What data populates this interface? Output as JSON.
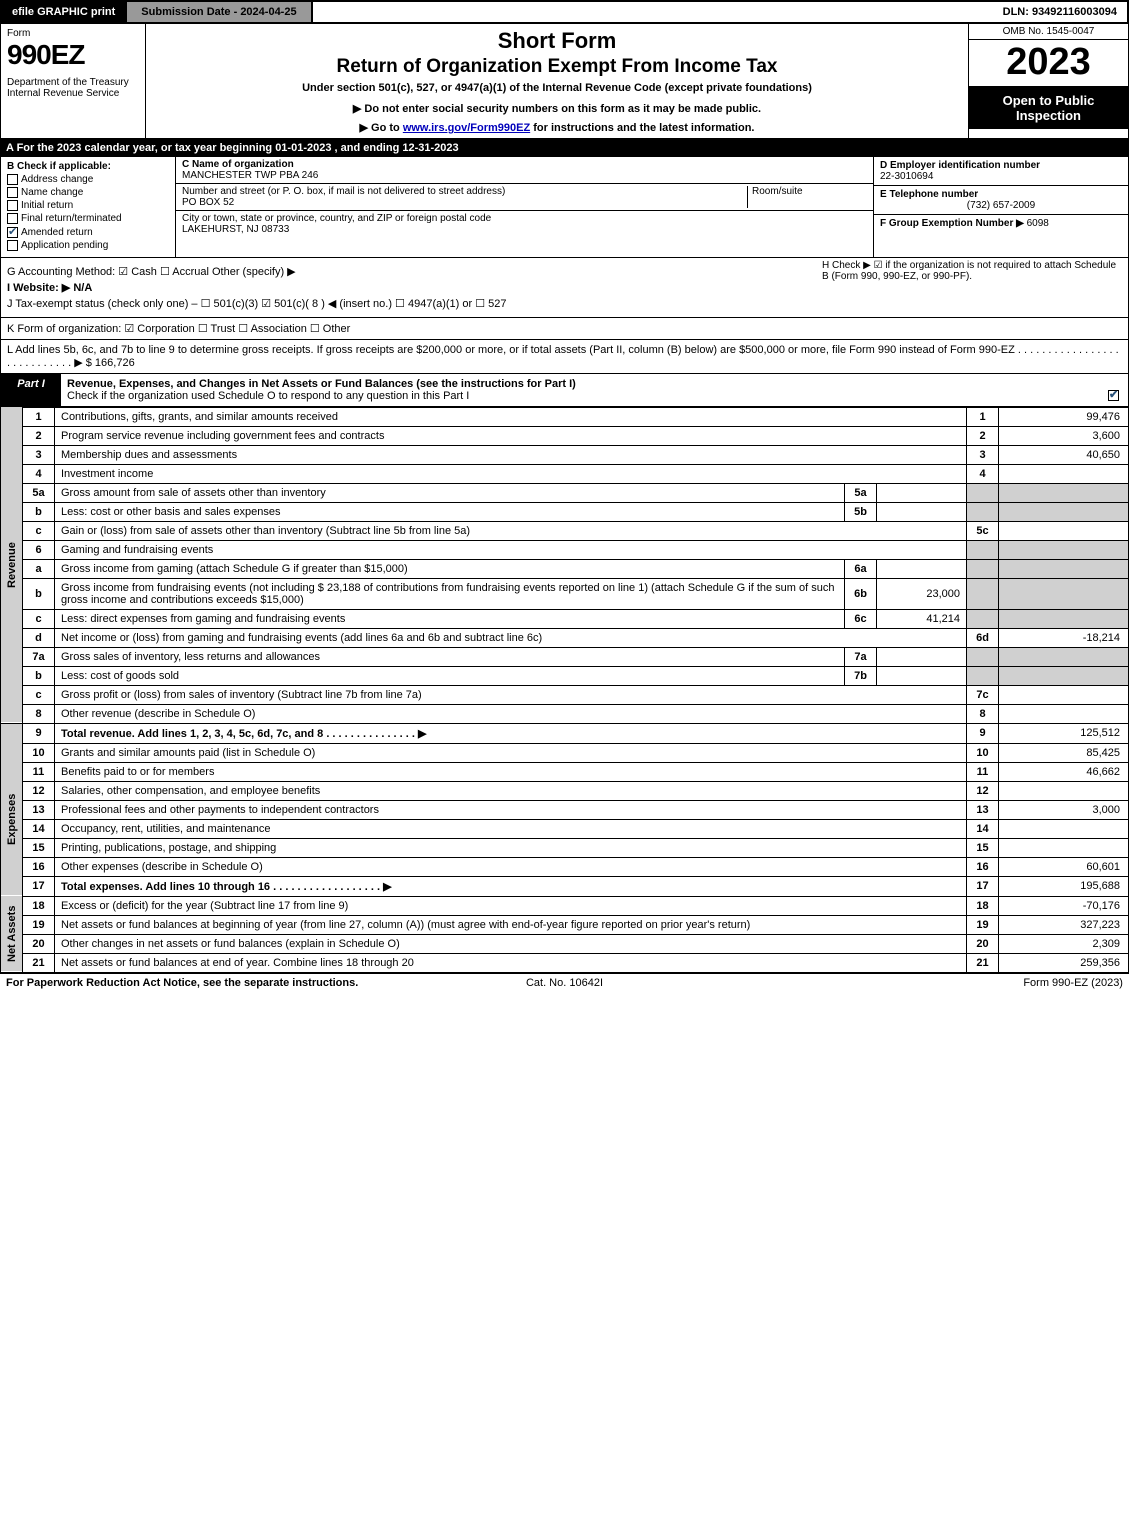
{
  "topbar": {
    "efile": "efile GRAPHIC print",
    "subdate_label": "Submission Date - 2024-04-25",
    "dln": "DLN: 93492116003094"
  },
  "header": {
    "form": "Form",
    "num": "990EZ",
    "dept": "Department of the Treasury\nInternal Revenue Service",
    "t1": "Short Form",
    "t2": "Return of Organization Exempt From Income Tax",
    "t3": "Under section 501(c), 527, or 4947(a)(1) of the Internal Revenue Code (except private foundations)",
    "t4": "▶ Do not enter social security numbers on this form as it may be made public.",
    "t5_pre": "▶ Go to ",
    "t5_link": "www.irs.gov/Form990EZ",
    "t5_post": " for instructions and the latest information.",
    "omb": "OMB No. 1545-0047",
    "year": "2023",
    "insp": "Open to Public Inspection"
  },
  "A": "A  For the 2023 calendar year, or tax year beginning 01-01-2023 , and ending 12-31-2023",
  "B": {
    "head": "B  Check if applicable:",
    "addr": "Address change",
    "name": "Name change",
    "init": "Initial return",
    "final": "Final return/terminated",
    "amend": "Amended return",
    "app": "Application pending"
  },
  "C": {
    "namelab": "C Name of organization",
    "name": "MANCHESTER TWP PBA 246",
    "streetlab": "Number and street (or P. O. box, if mail is not delivered to street address)",
    "street": "PO BOX 52",
    "room": "Room/suite",
    "citylab": "City or town, state or province, country, and ZIP or foreign postal code",
    "city": "LAKEHURST, NJ  08733"
  },
  "D": {
    "lab": "D Employer identification number",
    "val": "22-3010694"
  },
  "E": {
    "lab": "E Telephone number",
    "val": "(732) 657-2009"
  },
  "F": {
    "lab": "F Group Exemption Number  ▶",
    "val": "6098"
  },
  "G": "G Accounting Method:   ☑ Cash   ☐ Accrual   Other (specify) ▶",
  "H": "H   Check ▶ ☑ if the organization is not required to attach Schedule B (Form 990, 990-EZ, or 990-PF).",
  "I": "I Website: ▶ N/A",
  "J": "J Tax-exempt status (check only one) – ☐ 501(c)(3)  ☑ 501(c)( 8 ) ◀ (insert no.)  ☐ 4947(a)(1) or  ☐ 527",
  "K": "K Form of organization:   ☑ Corporation   ☐ Trust   ☐ Association   ☐ Other",
  "L": "L Add lines 5b, 6c, and 7b to line 9 to determine gross receipts. If gross receipts are $200,000 or more, or if total assets (Part II, column (B) below) are $500,000 or more, file Form 990 instead of Form 990-EZ  .  .  .  .  .  .  .  .  .  .  .  .  .  .  .  .  .  .  .  .  .  .  .  .  .  .  .  .  ▶ $ 166,726",
  "part1": {
    "title": "Part I",
    "head": "Revenue, Expenses, and Changes in Net Assets or Fund Balances (see the instructions for Part I)",
    "check": "Check if the organization used Schedule O to respond to any question in this Part I"
  },
  "side": {
    "rev": "Revenue",
    "exp": "Expenses",
    "net": "Net Assets"
  },
  "lines": {
    "l1": {
      "n": "1",
      "d": "Contributions, gifts, grants, and similar amounts received",
      "rn": "1",
      "v": "99,476"
    },
    "l2": {
      "n": "2",
      "d": "Program service revenue including government fees and contracts",
      "rn": "2",
      "v": "3,600"
    },
    "l3": {
      "n": "3",
      "d": "Membership dues and assessments",
      "rn": "3",
      "v": "40,650"
    },
    "l4": {
      "n": "4",
      "d": "Investment income",
      "rn": "4",
      "v": ""
    },
    "l5a": {
      "n": "5a",
      "d": "Gross amount from sale of assets other than inventory",
      "sn": "5a",
      "sv": ""
    },
    "l5b": {
      "n": "b",
      "d": "Less: cost or other basis and sales expenses",
      "sn": "5b",
      "sv": ""
    },
    "l5c": {
      "n": "c",
      "d": "Gain or (loss) from sale of assets other than inventory (Subtract line 5b from line 5a)",
      "rn": "5c",
      "v": ""
    },
    "l6": {
      "n": "6",
      "d": "Gaming and fundraising events"
    },
    "l6a": {
      "n": "a",
      "d": "Gross income from gaming (attach Schedule G if greater than $15,000)",
      "sn": "6a",
      "sv": ""
    },
    "l6b": {
      "n": "b",
      "d": "Gross income from fundraising events (not including $  23,188          of contributions from fundraising events reported on line 1) (attach Schedule G if the sum of such gross income and contributions exceeds $15,000)",
      "sn": "6b",
      "sv": "23,000"
    },
    "l6c": {
      "n": "c",
      "d": "Less: direct expenses from gaming and fundraising events",
      "sn": "6c",
      "sv": "41,214"
    },
    "l6d": {
      "n": "d",
      "d": "Net income or (loss) from gaming and fundraising events (add lines 6a and 6b and subtract line 6c)",
      "rn": "6d",
      "v": "-18,214"
    },
    "l7a": {
      "n": "7a",
      "d": "Gross sales of inventory, less returns and allowances",
      "sn": "7a",
      "sv": ""
    },
    "l7b": {
      "n": "b",
      "d": "Less: cost of goods sold",
      "sn": "7b",
      "sv": ""
    },
    "l7c": {
      "n": "c",
      "d": "Gross profit or (loss) from sales of inventory (Subtract line 7b from line 7a)",
      "rn": "7c",
      "v": ""
    },
    "l8": {
      "n": "8",
      "d": "Other revenue (describe in Schedule O)",
      "rn": "8",
      "v": ""
    },
    "l9": {
      "n": "9",
      "d": "Total revenue. Add lines 1, 2, 3, 4, 5c, 6d, 7c, and 8   .  .  .  .  .  .  .  .  .  .  .  .  .  .  .  ▶",
      "rn": "9",
      "v": "125,512"
    },
    "l10": {
      "n": "10",
      "d": "Grants and similar amounts paid (list in Schedule O)",
      "rn": "10",
      "v": "85,425"
    },
    "l11": {
      "n": "11",
      "d": "Benefits paid to or for members",
      "rn": "11",
      "v": "46,662"
    },
    "l12": {
      "n": "12",
      "d": "Salaries, other compensation, and employee benefits",
      "rn": "12",
      "v": ""
    },
    "l13": {
      "n": "13",
      "d": "Professional fees and other payments to independent contractors",
      "rn": "13",
      "v": "3,000"
    },
    "l14": {
      "n": "14",
      "d": "Occupancy, rent, utilities, and maintenance",
      "rn": "14",
      "v": ""
    },
    "l15": {
      "n": "15",
      "d": "Printing, publications, postage, and shipping",
      "rn": "15",
      "v": ""
    },
    "l16": {
      "n": "16",
      "d": "Other expenses (describe in Schedule O)",
      "rn": "16",
      "v": "60,601"
    },
    "l17": {
      "n": "17",
      "d": "Total expenses. Add lines 10 through 16    .  .  .  .  .  .  .  .  .  .  .  .  .  .  .  .  .  .  ▶",
      "rn": "17",
      "v": "195,688"
    },
    "l18": {
      "n": "18",
      "d": "Excess or (deficit) for the year (Subtract line 17 from line 9)",
      "rn": "18",
      "v": "-70,176"
    },
    "l19": {
      "n": "19",
      "d": "Net assets or fund balances at beginning of year (from line 27, column (A)) (must agree with end-of-year figure reported on prior year's return)",
      "rn": "19",
      "v": "327,223"
    },
    "l20": {
      "n": "20",
      "d": "Other changes in net assets or fund balances (explain in Schedule O)",
      "rn": "20",
      "v": "2,309"
    },
    "l21": {
      "n": "21",
      "d": "Net assets or fund balances at end of year. Combine lines 18 through 20",
      "rn": "21",
      "v": "259,356"
    }
  },
  "foot": {
    "f1": "For Paperwork Reduction Act Notice, see the separate instructions.",
    "f2": "Cat. No. 10642I",
    "f3": "Form 990-EZ (2023)"
  }
}
